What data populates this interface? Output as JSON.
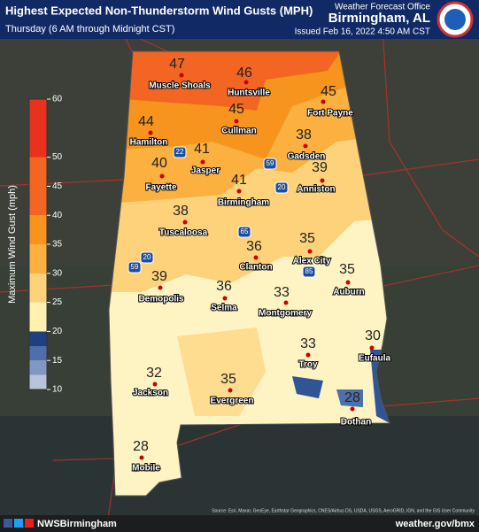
{
  "header": {
    "title": "Highest Expected Non-Thunderstorm Wind Gusts (MPH)",
    "subtitle": "Thursday (6 AM through Midnight CST)",
    "office": "Weather Forecast Office",
    "location": "Birmingham, AL",
    "issued": "Issued Feb 16, 2022 4:50 AM CST"
  },
  "legend": {
    "title": "Maximum Wind Gust (mph)",
    "ticks": [
      10,
      15,
      20,
      25,
      30,
      35,
      40,
      45,
      50,
      60
    ]
  },
  "cities": [
    {
      "name": "Muscle Shoals",
      "value": 47
    },
    {
      "name": "Huntsville",
      "value": 46
    },
    {
      "name": "Fort Payne",
      "value": 45
    },
    {
      "name": "Hamilton",
      "value": 44
    },
    {
      "name": "Cullman",
      "value": 45
    },
    {
      "name": "Gadsden",
      "value": 38
    },
    {
      "name": "Jasper",
      "value": 41
    },
    {
      "name": "Fayette",
      "value": 40
    },
    {
      "name": "Anniston",
      "value": 39
    },
    {
      "name": "Birmingham",
      "value": 41
    },
    {
      "name": "Tuscaloosa",
      "value": 38
    },
    {
      "name": "Alex City",
      "value": 35
    },
    {
      "name": "Clanton",
      "value": 36
    },
    {
      "name": "Auburn",
      "value": 35
    },
    {
      "name": "Demopolis",
      "value": 39
    },
    {
      "name": "Selma",
      "value": 36
    },
    {
      "name": "Montgomery",
      "value": 33
    },
    {
      "name": "Troy",
      "value": 33
    },
    {
      "name": "Eufaula",
      "value": 30
    },
    {
      "name": "Jackson",
      "value": 32
    },
    {
      "name": "Evergreen",
      "value": 35
    },
    {
      "name": "Dothan",
      "value": 28
    },
    {
      "name": "Mobile",
      "value": 28
    }
  ],
  "shields": [
    "22",
    "59",
    "20",
    "65",
    "85",
    "59",
    "20"
  ],
  "footer": {
    "handle": "NWSBirmingham",
    "url": "weather.gov/bmx",
    "source": "Source: Esri, Maxar, GeoEye, Earthstar Geographics, CNES/Airbus DS, USDA, USGS, AeroGRID, IGN, and the GIS User Community"
  }
}
